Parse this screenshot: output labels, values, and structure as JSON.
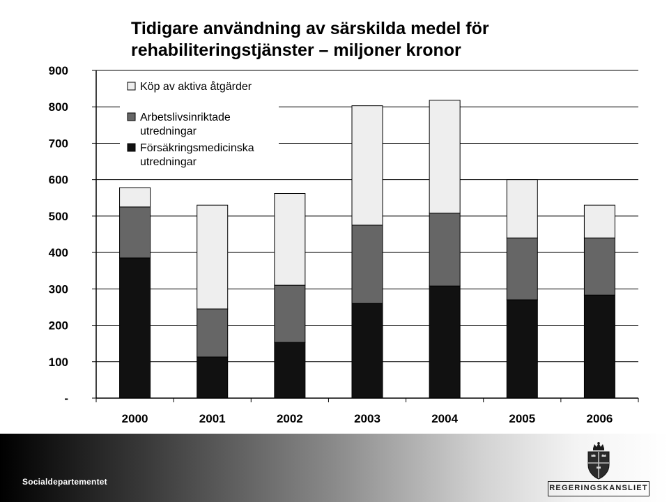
{
  "title": {
    "line1": "Tidigare användning av särskilda medel för",
    "line2": "rehabiliteringstjänster – miljoner kronor"
  },
  "chart_data": {
    "type": "bar",
    "stacked": true,
    "categories": [
      "2000",
      "2001",
      "2002",
      "2003",
      "2004",
      "2005",
      "2006"
    ],
    "series": [
      {
        "name": "Försäkringsmedicinska utredningar",
        "legend_lines": [
          "Försäkringsmedicinska",
          "utredningar"
        ],
        "color": "#111111",
        "values": [
          385,
          113,
          153,
          260,
          308,
          270,
          283
        ]
      },
      {
        "name": "Arbetslivsinriktade utredningar",
        "legend_lines": [
          "Arbetslivsinriktade",
          "utredningar"
        ],
        "color": "#666666",
        "values": [
          140,
          132,
          157,
          215,
          200,
          170,
          157
        ]
      },
      {
        "name": "Köp av aktiva åtgärder",
        "legend_lines": [
          "Köp av aktiva åtgärder"
        ],
        "color": "#eeeeee",
        "values": [
          53,
          285,
          252,
          328,
          310,
          160,
          90
        ]
      }
    ],
    "ylim": [
      0,
      900
    ],
    "yticks": [
      {
        "value": 0,
        "label": "-"
      },
      {
        "value": 100,
        "label": "100"
      },
      {
        "value": 200,
        "label": "200"
      },
      {
        "value": 300,
        "label": "300"
      },
      {
        "value": 400,
        "label": "400"
      },
      {
        "value": 500,
        "label": "500"
      },
      {
        "value": 600,
        "label": "600"
      },
      {
        "value": 700,
        "label": "700"
      },
      {
        "value": 800,
        "label": "800"
      },
      {
        "value": 900,
        "label": "900"
      }
    ],
    "xlabel": "",
    "ylabel": "",
    "grid": true,
    "legend_position": "top-left"
  },
  "footer": {
    "department": "Socialdepartementet",
    "logo_text": "REGERINGSKANSLIET"
  }
}
